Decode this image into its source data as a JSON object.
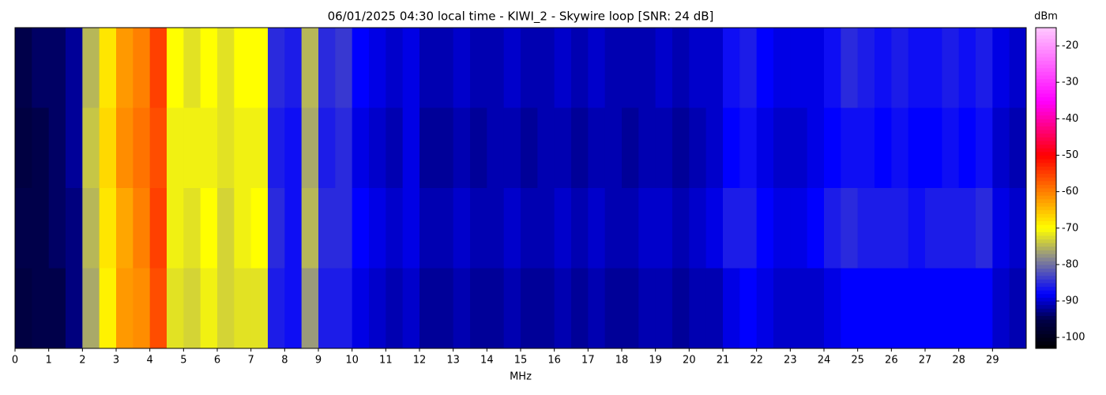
{
  "chart_data": {
    "type": "heatmap",
    "title": "06/01/2025 04:30 local time - KIWI_2 - Skywire loop [SNR: 24 dB]",
    "xlabel": "MHz",
    "colorbar_label": "dBm",
    "xlim": [
      0,
      30
    ],
    "xticks": [
      0,
      1,
      2,
      3,
      4,
      5,
      6,
      7,
      8,
      9,
      10,
      11,
      12,
      13,
      14,
      15,
      16,
      17,
      18,
      19,
      20,
      21,
      22,
      23,
      24,
      25,
      26,
      27,
      28,
      29
    ],
    "zlim": [
      -103,
      -15
    ],
    "zticks": [
      -100,
      -90,
      -80,
      -70,
      -60,
      -50,
      -40,
      -30,
      -20
    ],
    "colorscale": [
      [
        -103,
        "#000000"
      ],
      [
        -95,
        "#00004a"
      ],
      [
        -88,
        "#0000ff"
      ],
      [
        -78,
        "#8c8c8c"
      ],
      [
        -70,
        "#ffff00"
      ],
      [
        -60,
        "#ff8000"
      ],
      [
        -50,
        "#ff0000"
      ],
      [
        -35,
        "#ff00ff"
      ],
      [
        -15,
        "#ffc8ff"
      ]
    ],
    "z": [
      [
        -95,
        -94,
        -94,
        -92,
        -75,
        -68,
        -62,
        -60,
        -55,
        -70,
        -72,
        -70,
        -72,
        -70,
        -70,
        -85,
        -86,
        -75,
        -85,
        -84,
        -88,
        -89,
        -90,
        -89,
        -91,
        -91,
        -90,
        -91,
        -91,
        -90,
        -91,
        -91,
        -90,
        -91,
        -90,
        -91,
        -91,
        -91,
        -90,
        -91,
        -90,
        -90,
        -87,
        -86,
        -88,
        -89,
        -89,
        -89,
        -87,
        -85,
        -86,
        -87,
        -86,
        -87,
        -87,
        -86,
        -87,
        -86,
        -89,
        -90
      ],
      [
        -96,
        -95,
        -94,
        -92,
        -74,
        -67,
        -61,
        -59,
        -56,
        -71,
        -71,
        -71,
        -72,
        -71,
        -71,
        -86,
        -87,
        -76,
        -86,
        -85,
        -89,
        -90,
        -91,
        -89,
        -92,
        -92,
        -91,
        -92,
        -91,
        -91,
        -92,
        -91,
        -91,
        -92,
        -91,
        -91,
        -92,
        -91,
        -91,
        -92,
        -91,
        -90,
        -88,
        -87,
        -89,
        -90,
        -90,
        -89,
        -88,
        -87,
        -87,
        -88,
        -87,
        -88,
        -88,
        -87,
        -88,
        -87,
        -90,
        -91
      ],
      [
        -95,
        -95,
        -94,
        -93,
        -75,
        -68,
        -63,
        -60,
        -55,
        -71,
        -72,
        -70,
        -73,
        -71,
        -70,
        -85,
        -87,
        -75,
        -85,
        -85,
        -88,
        -89,
        -90,
        -89,
        -91,
        -91,
        -90,
        -91,
        -91,
        -90,
        -91,
        -91,
        -90,
        -91,
        -90,
        -91,
        -91,
        -90,
        -90,
        -91,
        -90,
        -89,
        -86,
        -86,
        -88,
        -89,
        -89,
        -88,
        -86,
        -85,
        -86,
        -86,
        -86,
        -87,
        -86,
        -86,
        -86,
        -85,
        -89,
        -90
      ],
      [
        -96,
        -95,
        -95,
        -93,
        -76,
        -69,
        -62,
        -61,
        -56,
        -72,
        -73,
        -71,
        -73,
        -72,
        -72,
        -86,
        -87,
        -77,
        -86,
        -86,
        -89,
        -90,
        -91,
        -90,
        -92,
        -92,
        -91,
        -92,
        -92,
        -91,
        -92,
        -92,
        -91,
        -92,
        -91,
        -92,
        -92,
        -91,
        -91,
        -92,
        -91,
        -91,
        -89,
        -88,
        -89,
        -90,
        -90,
        -90,
        -89,
        -88,
        -88,
        -88,
        -88,
        -88,
        -88,
        -88,
        -88,
        -88,
        -90,
        -91
      ]
    ]
  }
}
